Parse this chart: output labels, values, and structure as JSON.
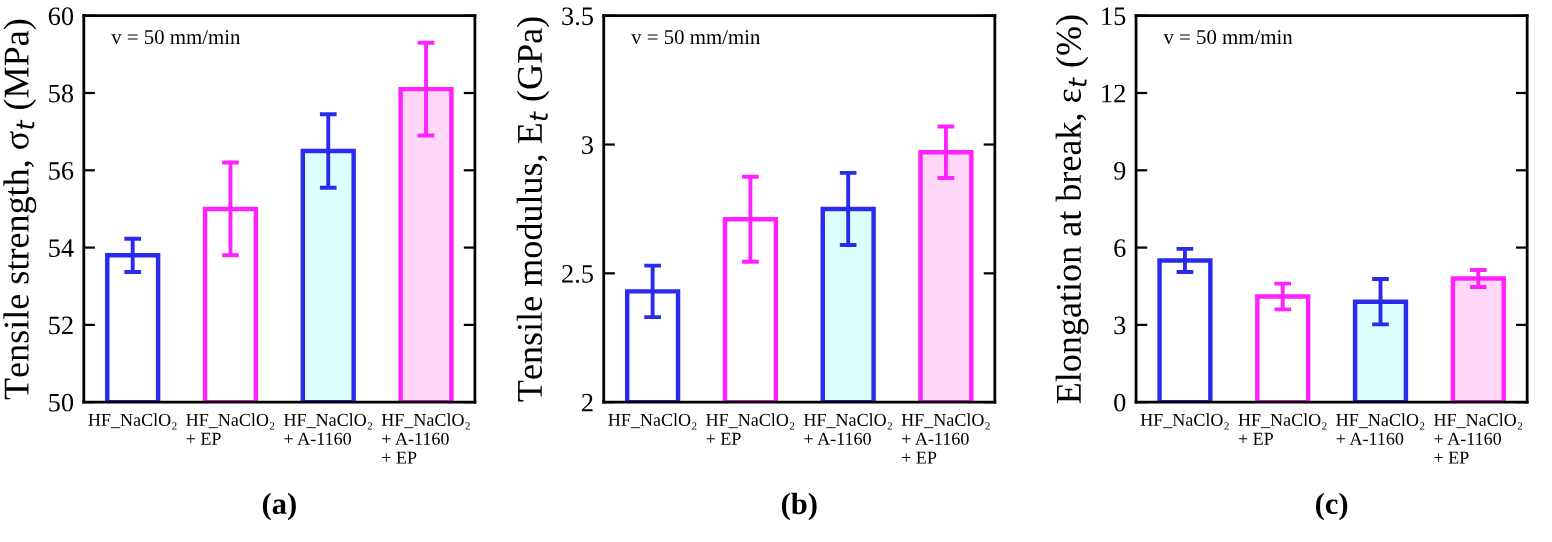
{
  "chart_data": [
    {
      "type": "bar",
      "ylabel": "Tensile strength, σ$_{t}$ (MPa)",
      "categories": [
        "HF_NaClO₂",
        "HF_NaClO₂\n+ EP",
        "HF_NaClO₂\n+ A-1160",
        "HF_NaClO₂\n+ A-1160\n+ EP"
      ],
      "values": [
        53.8,
        55.0,
        56.5,
        58.1
      ],
      "errors": [
        0.43,
        1.2,
        0.95,
        1.2
      ],
      "colors": [
        "#2b2bef",
        "#ff22ff",
        "#2b2bef",
        "#ff22ff"
      ],
      "ylim": [
        50,
        60
      ],
      "yticks": [
        50,
        52,
        54,
        56,
        58,
        60
      ],
      "grid": false,
      "annotations": [
        "v = 50 mm/min",
        "(a)"
      ]
    },
    {
      "type": "bar",
      "ylabel": "Tensile modulus, E$_{t}$ (GPa)",
      "categories": [
        "HF_NaClO₂",
        "HF_NaClO₂\n+ EP",
        "HF_NaClO₂\n+ A-1160",
        "HF_NaClO₂\n+ A-1160\n+ EP"
      ],
      "values": [
        2.43,
        2.71,
        2.75,
        2.97
      ],
      "errors": [
        0.1,
        0.165,
        0.14,
        0.1
      ],
      "colors": [
        "#2b2bef",
        "#ff22ff",
        "#2b2bef",
        "#ff22ff"
      ],
      "ylim": [
        2,
        3.5
      ],
      "yticks": [
        2,
        2.5,
        3,
        3.5
      ],
      "grid": false,
      "annotations": [
        "v = 50 mm/min",
        "(b)"
      ]
    },
    {
      "type": "bar",
      "ylabel": "Elongation at break, ε$_{t}$ (%)",
      "categories": [
        "HF_NaClO₂",
        "HF_NaClO₂\n+ EP",
        "HF_NaClO₂\n+ A-1160",
        "HF_NaClO₂\n+ A-1160\n+ EP"
      ],
      "values": [
        5.5,
        4.1,
        3.9,
        4.8
      ],
      "errors": [
        0.45,
        0.5,
        0.88,
        0.33
      ],
      "colors": [
        "#2b2bef",
        "#ff22ff",
        "#2b2bef",
        "#ff22ff"
      ],
      "ylim": [
        0,
        15
      ],
      "yticks": [
        0,
        3,
        6,
        9,
        12,
        15
      ],
      "grid": false,
      "annotations": [
        "v = 50 mm/min",
        "(c)"
      ]
    }
  ]
}
